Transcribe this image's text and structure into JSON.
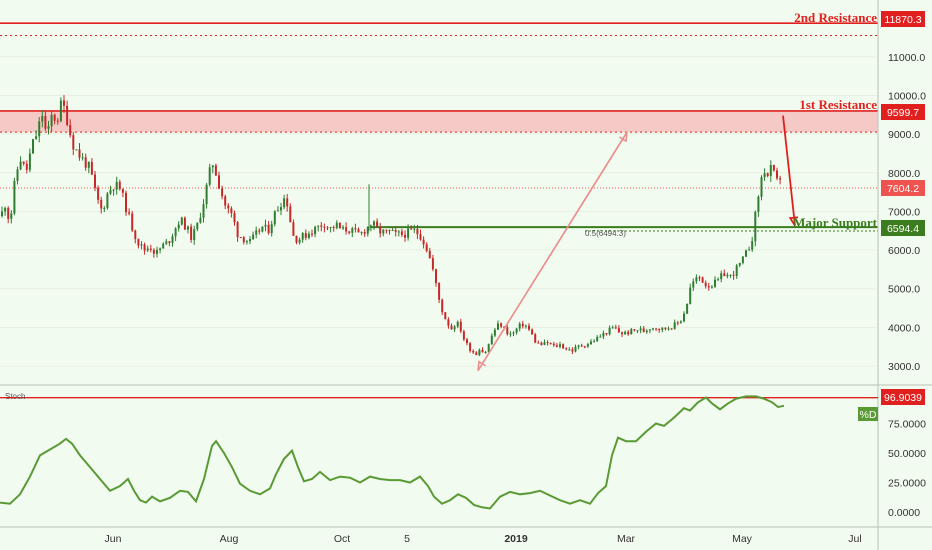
{
  "chart_data": {
    "type": "candlestick",
    "price_axis": {
      "ticks": [
        "3000.0",
        "4000.0",
        "5000.0",
        "6000.0",
        "7000.0",
        "8000.0",
        "9000.0",
        "10000.0",
        "11000.0"
      ],
      "range": [
        2600,
        12500
      ]
    },
    "time_axis": {
      "ticks": [
        "Jun",
        "Aug",
        "Oct",
        "5",
        "2019",
        "Mar",
        "May",
        "Jul"
      ]
    },
    "levels": {
      "second_resistance": {
        "label": "2nd Resistance",
        "value": "11870.3",
        "price": 11870.3
      },
      "first_resistance": {
        "label": "1st Resistance",
        "value": "9599.7",
        "price": 9599.7
      },
      "current": {
        "value": "7604.2",
        "price": 7604.2
      },
      "major_support": {
        "label": "Major Support",
        "value": "6594.4",
        "price": 6594.4
      },
      "fib_label": "0.5(6494.3)",
      "fib_price": 6494.3,
      "upper_dotted_price": 11550,
      "zone_dotted_price": 9050
    },
    "price_path": [
      [
        0,
        6800
      ],
      [
        5,
        7200
      ],
      [
        10,
        6700
      ],
      [
        15,
        7800
      ],
      [
        20,
        8400
      ],
      [
        26,
        8000
      ],
      [
        32,
        8700
      ],
      [
        38,
        9100
      ],
      [
        42,
        9550
      ],
      [
        47,
        8900
      ],
      [
        52,
        9500
      ],
      [
        57,
        9350
      ],
      [
        62,
        9850
      ],
      [
        67,
        9400
      ],
      [
        72,
        8800
      ],
      [
        78,
        8500
      ],
      [
        84,
        8300
      ],
      [
        90,
        8100
      ],
      [
        96,
        7400
      ],
      [
        102,
        7000
      ],
      [
        108,
        7500
      ],
      [
        114,
        7700
      ],
      [
        120,
        7600
      ],
      [
        126,
        7100
      ],
      [
        132,
        6600
      ],
      [
        138,
        6200
      ],
      [
        144,
        6000
      ],
      [
        150,
        6100
      ],
      [
        156,
        5900
      ],
      [
        162,
        6100
      ],
      [
        168,
        6200
      ],
      [
        174,
        6500
      ],
      [
        180,
        6800
      ],
      [
        186,
        6600
      ],
      [
        192,
        6300
      ],
      [
        198,
        6700
      ],
      [
        204,
        7300
      ],
      [
        208,
        7800
      ],
      [
        212,
        8300
      ],
      [
        216,
        8000
      ],
      [
        220,
        7600
      ],
      [
        226,
        7100
      ],
      [
        232,
        6900
      ],
      [
        238,
        6400
      ],
      [
        244,
        6300
      ],
      [
        250,
        6200
      ],
      [
        256,
        6400
      ],
      [
        262,
        6600
      ],
      [
        268,
        6500
      ],
      [
        274,
        6900
      ],
      [
        280,
        7200
      ],
      [
        286,
        7400
      ],
      [
        290,
        6800
      ],
      [
        294,
        6300
      ],
      [
        300,
        6300
      ],
      [
        306,
        6400
      ],
      [
        312,
        6500
      ],
      [
        318,
        6600
      ],
      [
        324,
        6700
      ],
      [
        330,
        6550
      ],
      [
        336,
        6650
      ],
      [
        342,
        6500
      ],
      [
        348,
        6550
      ],
      [
        354,
        6450
      ],
      [
        360,
        6400
      ],
      [
        366,
        6550
      ],
      [
        372,
        6700
      ],
      [
        378,
        6500
      ],
      [
        384,
        6450
      ],
      [
        390,
        6450
      ],
      [
        396,
        6400
      ],
      [
        402,
        6400
      ],
      [
        408,
        6450
      ],
      [
        414,
        6500
      ],
      [
        420,
        6400
      ],
      [
        426,
        6100
      ],
      [
        432,
        5600
      ],
      [
        436,
        5100
      ],
      [
        440,
        4600
      ],
      [
        444,
        4300
      ],
      [
        448,
        4100
      ],
      [
        452,
        3950
      ],
      [
        456,
        4150
      ],
      [
        460,
        4000
      ],
      [
        464,
        3700
      ],
      [
        468,
        3500
      ],
      [
        472,
        3400
      ],
      [
        476,
        3300
      ],
      [
        480,
        3500
      ],
      [
        484,
        3300
      ],
      [
        488,
        3500
      ],
      [
        492,
        3800
      ],
      [
        496,
        4000
      ],
      [
        500,
        4100
      ],
      [
        506,
        3900
      ],
      [
        512,
        3800
      ],
      [
        518,
        4000
      ],
      [
        524,
        4100
      ],
      [
        530,
        3900
      ],
      [
        536,
        3600
      ],
      [
        542,
        3550
      ],
      [
        548,
        3600
      ],
      [
        554,
        3500
      ],
      [
        560,
        3550
      ],
      [
        566,
        3450
      ],
      [
        572,
        3400
      ],
      [
        578,
        3500
      ],
      [
        584,
        3550
      ],
      [
        590,
        3600
      ],
      [
        596,
        3700
      ],
      [
        602,
        3800
      ],
      [
        608,
        3900
      ],
      [
        614,
        4000
      ],
      [
        620,
        3850
      ],
      [
        626,
        3850
      ],
      [
        632,
        3900
      ],
      [
        638,
        3950
      ],
      [
        644,
        3900
      ],
      [
        650,
        4000
      ],
      [
        656,
        4000
      ],
      [
        662,
        3950
      ],
      [
        668,
        4000
      ],
      [
        674,
        4050
      ],
      [
        680,
        4150
      ],
      [
        686,
        4500
      ],
      [
        690,
        5000
      ],
      [
        694,
        5200
      ],
      [
        700,
        5300
      ],
      [
        706,
        5100
      ],
      [
        712,
        5100
      ],
      [
        718,
        5200
      ],
      [
        724,
        5400
      ],
      [
        730,
        5300
      ],
      [
        736,
        5500
      ],
      [
        742,
        5700
      ],
      [
        748,
        6000
      ],
      [
        752,
        6300
      ],
      [
        756,
        7000
      ],
      [
        760,
        7700
      ],
      [
        764,
        8100
      ],
      [
        768,
        7900
      ],
      [
        772,
        8150
      ],
      [
        776,
        7700
      ],
      [
        780,
        7900
      ],
      [
        784,
        7600
      ]
    ],
    "stoch_axis": {
      "ticks": [
        "0.0000",
        "25.0000",
        "50.0000",
        "75.0000"
      ],
      "value": "96.9039",
      "label": "Stoch",
      "legend": "%D"
    },
    "stoch_path": [
      [
        0,
        8
      ],
      [
        10,
        7
      ],
      [
        20,
        15
      ],
      [
        30,
        30
      ],
      [
        40,
        48
      ],
      [
        50,
        53
      ],
      [
        60,
        58
      ],
      [
        66,
        62
      ],
      [
        72,
        58
      ],
      [
        80,
        48
      ],
      [
        90,
        38
      ],
      [
        100,
        28
      ],
      [
        110,
        18
      ],
      [
        120,
        22
      ],
      [
        128,
        28
      ],
      [
        134,
        18
      ],
      [
        140,
        10
      ],
      [
        146,
        8
      ],
      [
        152,
        13
      ],
      [
        160,
        9
      ],
      [
        170,
        12
      ],
      [
        180,
        18
      ],
      [
        188,
        17
      ],
      [
        196,
        9
      ],
      [
        204,
        28
      ],
      [
        212,
        56
      ],
      [
        216,
        60
      ],
      [
        224,
        50
      ],
      [
        232,
        38
      ],
      [
        240,
        24
      ],
      [
        250,
        18
      ],
      [
        260,
        15
      ],
      [
        270,
        20
      ],
      [
        276,
        32
      ],
      [
        284,
        45
      ],
      [
        292,
        52
      ],
      [
        298,
        38
      ],
      [
        304,
        26
      ],
      [
        312,
        28
      ],
      [
        320,
        34
      ],
      [
        330,
        27
      ],
      [
        340,
        30
      ],
      [
        350,
        29
      ],
      [
        360,
        25
      ],
      [
        370,
        30
      ],
      [
        380,
        28
      ],
      [
        390,
        27
      ],
      [
        400,
        27
      ],
      [
        410,
        25
      ],
      [
        420,
        30
      ],
      [
        428,
        22
      ],
      [
        434,
        13
      ],
      [
        442,
        7
      ],
      [
        450,
        10
      ],
      [
        458,
        15
      ],
      [
        466,
        12
      ],
      [
        474,
        6
      ],
      [
        482,
        4
      ],
      [
        490,
        3
      ],
      [
        500,
        13
      ],
      [
        510,
        17
      ],
      [
        520,
        15
      ],
      [
        530,
        16
      ],
      [
        540,
        18
      ],
      [
        550,
        14
      ],
      [
        560,
        10
      ],
      [
        570,
        7
      ],
      [
        580,
        10
      ],
      [
        590,
        7
      ],
      [
        598,
        16
      ],
      [
        606,
        22
      ],
      [
        612,
        48
      ],
      [
        618,
        63
      ],
      [
        626,
        60
      ],
      [
        636,
        60
      ],
      [
        646,
        68
      ],
      [
        656,
        75
      ],
      [
        664,
        73
      ],
      [
        674,
        80
      ],
      [
        684,
        88
      ],
      [
        690,
        86
      ],
      [
        698,
        93
      ],
      [
        706,
        97
      ],
      [
        712,
        92
      ],
      [
        720,
        87
      ],
      [
        728,
        92
      ],
      [
        736,
        96
      ],
      [
        746,
        98
      ],
      [
        756,
        98
      ],
      [
        764,
        96
      ],
      [
        772,
        93
      ],
      [
        778,
        89
      ],
      [
        784,
        90
      ]
    ],
    "arrows": [
      {
        "from": [
          478,
          2880
        ],
        "to": [
          627,
          9050
        ]
      },
      {
        "from": [
          783,
          9480
        ],
        "to": [
          795,
          6630
        ]
      }
    ]
  }
}
